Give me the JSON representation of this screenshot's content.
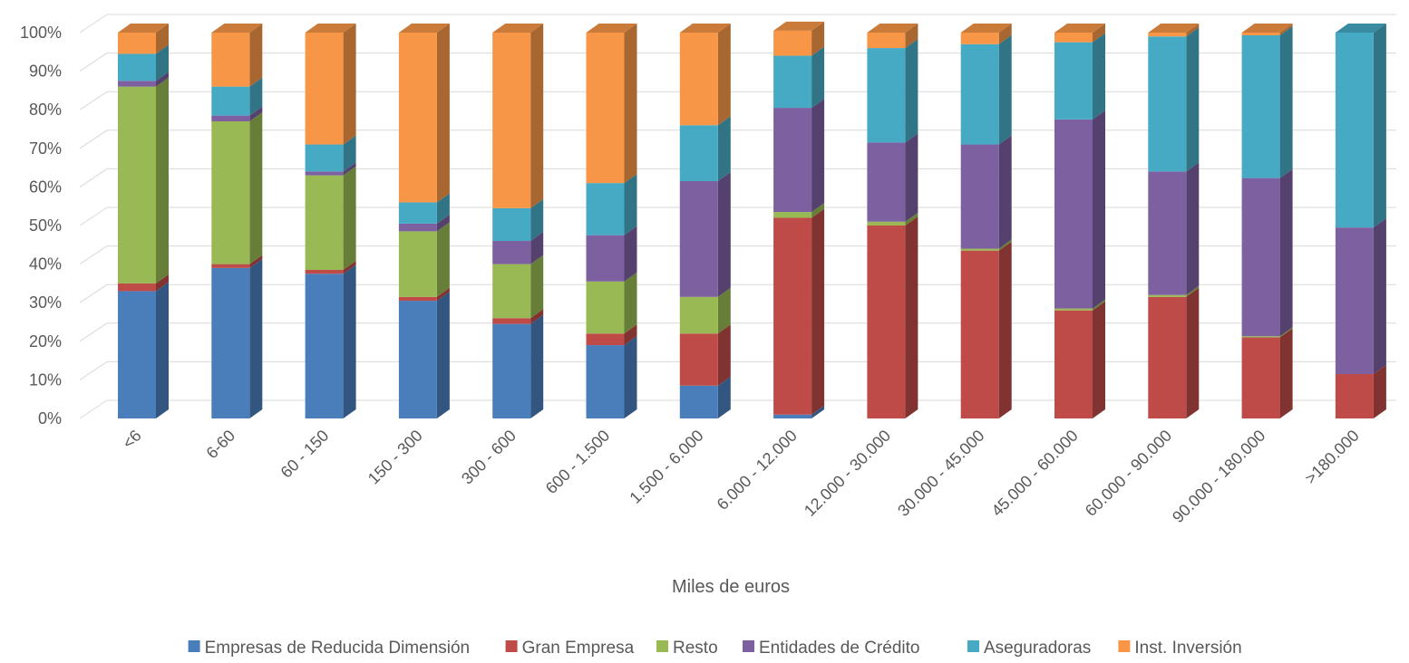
{
  "chart_data": {
    "type": "bar",
    "stacked": true,
    "percent": true,
    "three_d": true,
    "title": "",
    "xlabel": "Miles de euros",
    "ylabel": "",
    "ylim": [
      0,
      100
    ],
    "y_ticks": [
      "0%",
      "10%",
      "20%",
      "30%",
      "40%",
      "50%",
      "60%",
      "70%",
      "80%",
      "90%",
      "100%"
    ],
    "grid": true,
    "legend_position": "bottom",
    "categories": [
      "<6",
      "6-60",
      "60 - 150",
      "150 - 300",
      "300 - 600",
      "600 - 1.500",
      "1.500 - 6.000",
      "6.000 - 12.000",
      "12.000 - 30.000",
      "30.000 - 45.000",
      "45.000 - 60.000",
      "60.000 - 90.000",
      "90.000 - 180.000",
      ">180.000"
    ],
    "series": [
      {
        "name": "Empresas de Reducida Dimensión",
        "color": "#4a7ebb",
        "values": [
          33,
          39,
          37.5,
          30.5,
          24.5,
          19,
          8.5,
          1,
          0,
          0,
          0,
          0,
          0,
          0
        ]
      },
      {
        "name": "Gran Empresa",
        "color": "#be4b48",
        "values": [
          2,
          1,
          1,
          1,
          1.5,
          3,
          13.5,
          51,
          50,
          43.5,
          28,
          31.5,
          21,
          11.5
        ]
      },
      {
        "name": "Resto",
        "color": "#98b954",
        "values": [
          51,
          37,
          24.5,
          17,
          14,
          13.5,
          9.5,
          1.5,
          1,
          0.5,
          0.5,
          0.5,
          0.3,
          0
        ]
      },
      {
        "name": "Entidades de Crédito",
        "color": "#7d60a0",
        "values": [
          1.5,
          1.5,
          1,
          2,
          6,
          12,
          30,
          27,
          20.5,
          27,
          49,
          32,
          41,
          38
        ]
      },
      {
        "name": "Aseguradoras",
        "color": "#46aac5",
        "values": [
          7,
          7.5,
          7,
          5.5,
          8.5,
          13.5,
          14.5,
          13.5,
          24.5,
          26,
          20,
          35,
          37,
          50.5
        ]
      },
      {
        "name": "Inst. Inversión",
        "color": "#f79646",
        "values": [
          5.5,
          14,
          29,
          44,
          45.5,
          39,
          24,
          6.5,
          4,
          3,
          2.5,
          1,
          0.7,
          0
        ]
      }
    ]
  }
}
